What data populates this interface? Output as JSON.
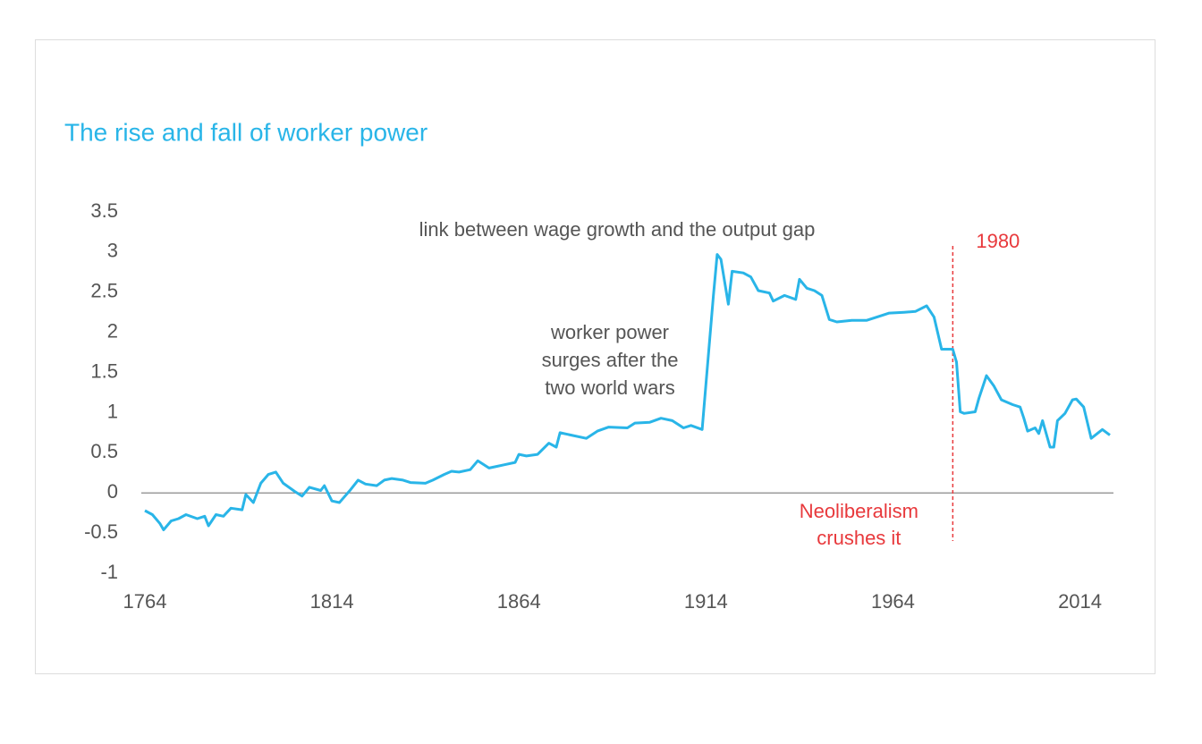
{
  "chart_data": {
    "type": "line",
    "title": "The rise and fall of worker power",
    "x": [
      1764,
      1766,
      1768,
      1769,
      1771,
      1773,
      1775,
      1778,
      1780,
      1781,
      1783,
      1785,
      1787,
      1790,
      1791,
      1793,
      1795,
      1797,
      1799,
      1801,
      1804,
      1806,
      1808,
      1811,
      1812,
      1814,
      1816,
      1819,
      1821,
      1823,
      1826,
      1828,
      1830,
      1833,
      1835,
      1839,
      1841,
      1844,
      1846,
      1848,
      1851,
      1853,
      1856,
      1858,
      1860,
      1863,
      1864,
      1866,
      1869,
      1872,
      1874,
      1875,
      1878,
      1882,
      1885,
      1888,
      1893,
      1895,
      1899,
      1902,
      1905,
      1908,
      1910,
      1913,
      1914,
      1916,
      1917,
      1918,
      1920,
      1921,
      1924,
      1926,
      1928,
      1931,
      1932,
      1935,
      1938,
      1939,
      1941,
      1943,
      1945,
      1947,
      1949,
      1953,
      1957,
      1961,
      1963,
      1967,
      1970,
      1973,
      1975,
      1977,
      1980,
      1981,
      1982,
      1983,
      1986,
      1987,
      1989,
      1991,
      1993,
      1996,
      1998,
      1999,
      2000,
      2002,
      2003,
      2004,
      2006,
      2007,
      2008,
      2010,
      2012,
      2013,
      2015,
      2017,
      2020,
      2022
    ],
    "series": [
      {
        "color": "#29b5e8",
        "values": [
          -0.22,
          -0.27,
          -0.38,
          -0.46,
          -0.35,
          -0.32,
          -0.27,
          -0.32,
          -0.29,
          -0.41,
          -0.27,
          -0.29,
          -0.19,
          -0.21,
          -0.02,
          -0.12,
          0.12,
          0.23,
          0.26,
          0.12,
          0.02,
          -0.04,
          0.07,
          0.03,
          0.09,
          -0.1,
          -0.12,
          0.04,
          0.16,
          0.11,
          0.09,
          0.16,
          0.18,
          0.16,
          0.13,
          0.12,
          0.16,
          0.23,
          0.27,
          0.26,
          0.29,
          0.4,
          0.31,
          0.33,
          0.35,
          0.38,
          0.48,
          0.46,
          0.48,
          0.62,
          0.57,
          0.75,
          0.72,
          0.68,
          0.77,
          0.82,
          0.81,
          0.87,
          0.88,
          0.93,
          0.9,
          0.81,
          0.84,
          0.79,
          1.35,
          2.46,
          2.97,
          2.91,
          2.35,
          2.76,
          2.74,
          2.69,
          2.52,
          2.49,
          2.39,
          2.46,
          2.41,
          2.66,
          2.55,
          2.52,
          2.46,
          2.16,
          2.13,
          2.15,
          2.15,
          2.21,
          2.24,
          2.25,
          2.26,
          2.33,
          2.19,
          1.79,
          1.79,
          1.63,
          1.01,
          0.99,
          1.01,
          1.18,
          1.46,
          1.33,
          1.16,
          1.1,
          1.07,
          0.93,
          0.77,
          0.81,
          0.74,
          0.9,
          0.57,
          0.57,
          0.9,
          0.99,
          1.16,
          1.17,
          1.07,
          0.68,
          0.79,
          0.72
        ]
      }
    ],
    "xlim": [
      1764,
      2022
    ],
    "xticks": [
      1764,
      1814,
      1864,
      1914,
      1964,
      2014
    ],
    "ylim": [
      -1,
      3.5
    ],
    "yticks": [
      -1,
      -0.5,
      0,
      0.5,
      1,
      1.5,
      2,
      2.5,
      3,
      3.5
    ],
    "subtitle": "link between wage growth and the output gap",
    "annotation": [
      "worker power",
      "surges after the",
      "two world wars"
    ],
    "vline": 1980,
    "vline_note": [
      "Neoliberalism",
      "crushes it"
    ]
  }
}
